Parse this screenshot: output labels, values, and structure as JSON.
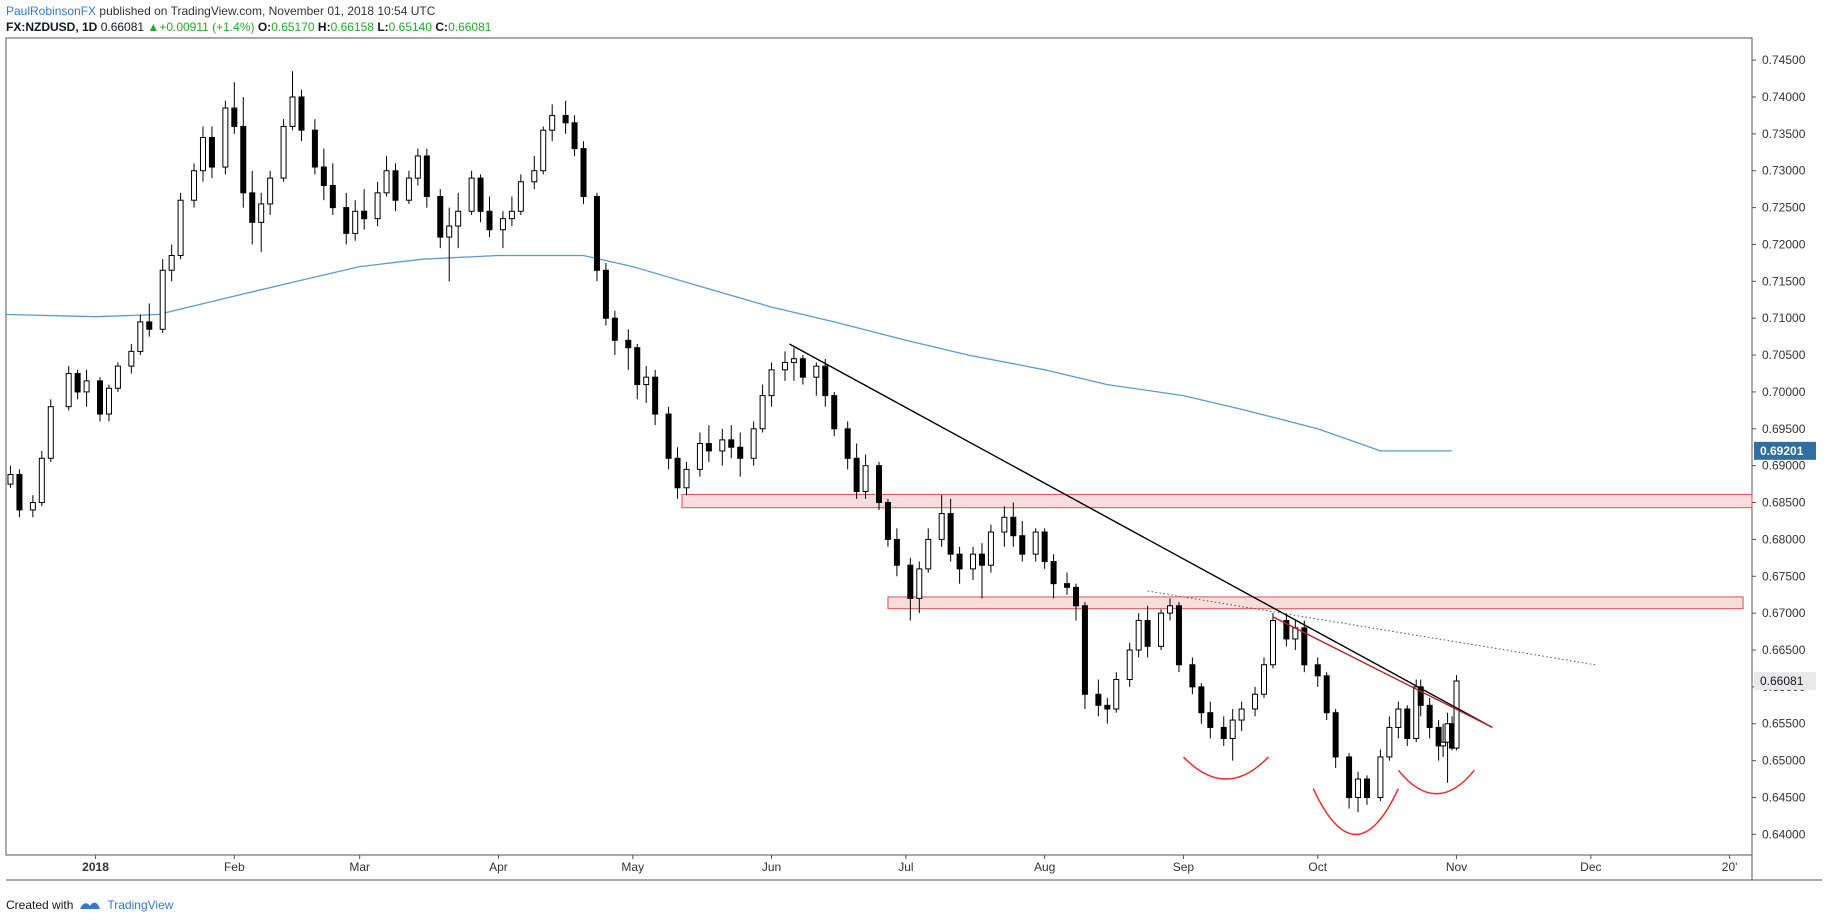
{
  "header": {
    "author": "PaulRobinsonFX",
    "published": "published on TradingView.com, November 01, 2018 10:54 UTC"
  },
  "symbol": {
    "name": "FX:NZDUSD, 1D",
    "last": "0.66081",
    "change_arrow": "▲",
    "change": "+0.00911 (+1.4%)",
    "o_label": "O:",
    "o": "0.65170",
    "h_label": "H:",
    "h": "0.66158",
    "l_label": "L:",
    "l": "0.65140",
    "c_label": "C:",
    "c": "0.66081"
  },
  "footer": {
    "created_with": "Created with",
    "brand": "TradingView"
  },
  "colors": {
    "up_body": "#ffffff",
    "down_body": "#000000",
    "wick": "#000000",
    "ma": "#5b9bd5",
    "zone_fill": "#f6d1d1",
    "zone_stroke": "#d9534f",
    "trend_red": "#b22222",
    "arc_red": "#e8302a",
    "last_label_bg": "#e9e9e9",
    "ma_label_bg": "#2f6fa3"
  },
  "chart_data": {
    "type": "candlestick",
    "title": "FX:NZDUSD, 1D",
    "ylim": [
      0.6372,
      0.748
    ],
    "y_ticks": [
      "0.74500",
      "0.74000",
      "0.73500",
      "0.73000",
      "0.72500",
      "0.72000",
      "0.71500",
      "0.71000",
      "0.70500",
      "0.70000",
      "0.69500",
      "0.69000",
      "0.68500",
      "0.68000",
      "0.67500",
      "0.67000",
      "0.66500",
      "0.66000",
      "0.65500",
      "0.65000",
      "0.64500",
      "0.64000"
    ],
    "x_labels": [
      "2018",
      "Feb",
      "Mar",
      "Apr",
      "May",
      "Jun",
      "Jul",
      "Aug",
      "Sep",
      "Oct",
      "Nov",
      "Dec",
      "20'"
    ],
    "x_label_dates": [
      "2018-01-01",
      "2018-02-01",
      "2018-03-01",
      "2018-04-01",
      "2018-05-01",
      "2018-06-01",
      "2018-07-01",
      "2018-08-01",
      "2018-09-01",
      "2018-10-01",
      "2018-11-01",
      "2018-12-01",
      "2019-01-01"
    ],
    "xlim": [
      "2017-12-12",
      "2019-01-06"
    ],
    "last_price_label": "0.66081",
    "ma_label": "0.69201",
    "ma_line": [
      [
        "2017-12-12",
        0.7105
      ],
      [
        "2018-01-01",
        0.7102
      ],
      [
        "2018-01-15",
        0.7105
      ],
      [
        "2018-02-01",
        0.713
      ],
      [
        "2018-02-15",
        0.715
      ],
      [
        "2018-03-01",
        0.717
      ],
      [
        "2018-03-15",
        0.718
      ],
      [
        "2018-04-01",
        0.7185
      ],
      [
        "2018-04-20",
        0.7185
      ],
      [
        "2018-05-01",
        0.717
      ],
      [
        "2018-05-15",
        0.7145
      ],
      [
        "2018-06-01",
        0.7115
      ],
      [
        "2018-06-15",
        0.7095
      ],
      [
        "2018-07-01",
        0.707
      ],
      [
        "2018-07-15",
        0.705
      ],
      [
        "2018-08-01",
        0.703
      ],
      [
        "2018-08-15",
        0.701
      ],
      [
        "2018-09-01",
        0.6995
      ],
      [
        "2018-09-15",
        0.6975
      ],
      [
        "2018-10-01",
        0.695
      ],
      [
        "2018-10-15",
        0.692
      ],
      [
        "2018-10-31",
        0.692
      ]
    ],
    "zones": [
      {
        "start": "2018-05-12",
        "end": "2019-01-06",
        "low": 0.6843,
        "high": 0.6861
      },
      {
        "start": "2018-06-27",
        "end": "2019-01-04",
        "low": 0.6706,
        "high": 0.6722
      }
    ],
    "trendlines": [
      {
        "from": [
          "2018-06-05",
          0.7065
        ],
        "to": [
          "2018-11-09",
          0.6545
        ],
        "color": "#000000",
        "style": "solid"
      },
      {
        "from": [
          "2018-09-21",
          0.6695
        ],
        "to": [
          "2018-11-09",
          0.6545
        ],
        "color": "#b22222",
        "style": "solid"
      },
      {
        "from": [
          "2018-08-24",
          0.673
        ],
        "to": [
          "2018-12-02",
          0.663
        ],
        "color": "#555555",
        "style": "dotted"
      }
    ],
    "arcs": [
      {
        "start": "2018-09-01",
        "end": "2018-09-20",
        "top": 0.6505,
        "bottom": 0.6475
      },
      {
        "start": "2018-09-30",
        "end": "2018-10-19",
        "top": 0.6462,
        "bottom": 0.64
      },
      {
        "start": "2018-10-19",
        "end": "2018-11-05",
        "top": 0.6487,
        "bottom": 0.6455
      }
    ],
    "candles": [
      [
        "2017-12-13",
        0.6875,
        0.69,
        0.687,
        0.6888
      ],
      [
        "2017-12-15",
        0.6888,
        0.6895,
        0.683,
        0.684
      ],
      [
        "2017-12-18",
        0.684,
        0.686,
        0.683,
        0.685
      ],
      [
        "2017-12-20",
        0.685,
        0.692,
        0.6845,
        0.691
      ],
      [
        "2017-12-22",
        0.691,
        0.699,
        0.6905,
        0.698
      ],
      [
        "2017-12-26",
        0.698,
        0.7035,
        0.6975,
        0.7025
      ],
      [
        "2017-12-28",
        0.7025,
        0.703,
        0.699,
        0.7
      ],
      [
        "2017-12-30",
        0.7,
        0.703,
        0.698,
        0.7015
      ],
      [
        "2018-01-02",
        0.7015,
        0.702,
        0.696,
        0.697
      ],
      [
        "2018-01-04",
        0.697,
        0.701,
        0.696,
        0.7005
      ],
      [
        "2018-01-06",
        0.7005,
        0.704,
        0.7,
        0.7035
      ],
      [
        "2018-01-09",
        0.7035,
        0.7065,
        0.7025,
        0.7055
      ],
      [
        "2018-01-11",
        0.7055,
        0.7105,
        0.705,
        0.7095
      ],
      [
        "2018-01-13",
        0.7095,
        0.712,
        0.7075,
        0.7085
      ],
      [
        "2018-01-16",
        0.7085,
        0.718,
        0.708,
        0.7165
      ],
      [
        "2018-01-18",
        0.7165,
        0.72,
        0.715,
        0.7185
      ],
      [
        "2018-01-20",
        0.7185,
        0.727,
        0.718,
        0.726
      ],
      [
        "2018-01-23",
        0.726,
        0.731,
        0.725,
        0.73
      ],
      [
        "2018-01-25",
        0.73,
        0.736,
        0.7285,
        0.7345
      ],
      [
        "2018-01-27",
        0.7345,
        0.736,
        0.729,
        0.7305
      ],
      [
        "2018-01-30",
        0.7305,
        0.7395,
        0.7295,
        0.7385
      ],
      [
        "2018-02-01",
        0.7385,
        0.742,
        0.735,
        0.736
      ],
      [
        "2018-02-03",
        0.736,
        0.74,
        0.725,
        0.727
      ],
      [
        "2018-02-05",
        0.727,
        0.73,
        0.72,
        0.723
      ],
      [
        "2018-02-07",
        0.723,
        0.727,
        0.719,
        0.7255
      ],
      [
        "2018-02-09",
        0.7255,
        0.73,
        0.724,
        0.729
      ],
      [
        "2018-02-12",
        0.729,
        0.737,
        0.7285,
        0.736
      ],
      [
        "2018-02-14",
        0.736,
        0.7435,
        0.7355,
        0.74
      ],
      [
        "2018-02-16",
        0.74,
        0.741,
        0.734,
        0.7355
      ],
      [
        "2018-02-19",
        0.7355,
        0.737,
        0.7295,
        0.7305
      ],
      [
        "2018-02-21",
        0.7305,
        0.733,
        0.726,
        0.728
      ],
      [
        "2018-02-23",
        0.728,
        0.731,
        0.724,
        0.725
      ],
      [
        "2018-02-26",
        0.725,
        0.727,
        0.72,
        0.7215
      ],
      [
        "2018-02-28",
        0.7215,
        0.726,
        0.7205,
        0.7245
      ],
      [
        "2018-03-02",
        0.7245,
        0.7275,
        0.722,
        0.7235
      ],
      [
        "2018-03-05",
        0.7235,
        0.7285,
        0.7225,
        0.727
      ],
      [
        "2018-03-07",
        0.727,
        0.732,
        0.7265,
        0.73
      ],
      [
        "2018-03-09",
        0.73,
        0.731,
        0.7245,
        0.726
      ],
      [
        "2018-03-12",
        0.726,
        0.73,
        0.7255,
        0.729
      ],
      [
        "2018-03-14",
        0.729,
        0.733,
        0.728,
        0.732
      ],
      [
        "2018-03-16",
        0.732,
        0.733,
        0.725,
        0.7265
      ],
      [
        "2018-03-19",
        0.7265,
        0.7275,
        0.7195,
        0.721
      ],
      [
        "2018-03-21",
        0.721,
        0.725,
        0.715,
        0.7225
      ],
      [
        "2018-03-23",
        0.7225,
        0.727,
        0.7195,
        0.7245
      ],
      [
        "2018-03-26",
        0.7245,
        0.73,
        0.724,
        0.729
      ],
      [
        "2018-03-28",
        0.729,
        0.7295,
        0.723,
        0.7245
      ],
      [
        "2018-03-30",
        0.7245,
        0.7265,
        0.721,
        0.722
      ],
      [
        "2018-04-02",
        0.722,
        0.7245,
        0.7195,
        0.7235
      ],
      [
        "2018-04-04",
        0.7235,
        0.7265,
        0.7225,
        0.7245
      ],
      [
        "2018-04-06",
        0.7245,
        0.7295,
        0.724,
        0.7285
      ],
      [
        "2018-04-09",
        0.7285,
        0.732,
        0.7275,
        0.73
      ],
      [
        "2018-04-11",
        0.73,
        0.736,
        0.7295,
        0.7355
      ],
      [
        "2018-04-13",
        0.7355,
        0.739,
        0.734,
        0.7375
      ],
      [
        "2018-04-16",
        0.7375,
        0.7395,
        0.735,
        0.7365
      ],
      [
        "2018-04-18",
        0.7365,
        0.7375,
        0.732,
        0.733
      ],
      [
        "2018-04-20",
        0.733,
        0.734,
        0.7255,
        0.7265
      ],
      [
        "2018-04-23",
        0.7265,
        0.727,
        0.715,
        0.7165
      ],
      [
        "2018-04-25",
        0.7165,
        0.7175,
        0.709,
        0.71
      ],
      [
        "2018-04-27",
        0.71,
        0.711,
        0.705,
        0.707
      ],
      [
        "2018-04-30",
        0.707,
        0.7085,
        0.703,
        0.706
      ],
      [
        "2018-05-02",
        0.706,
        0.7065,
        0.699,
        0.701
      ],
      [
        "2018-05-04",
        0.701,
        0.7035,
        0.6985,
        0.702
      ],
      [
        "2018-05-06",
        0.702,
        0.703,
        0.6955,
        0.697
      ],
      [
        "2018-05-09",
        0.697,
        0.698,
        0.6895,
        0.691
      ],
      [
        "2018-05-11",
        0.691,
        0.6925,
        0.6855,
        0.687
      ],
      [
        "2018-05-13",
        0.687,
        0.6905,
        0.686,
        0.6895
      ],
      [
        "2018-05-16",
        0.6895,
        0.6945,
        0.6885,
        0.693
      ],
      [
        "2018-05-18",
        0.693,
        0.6955,
        0.6905,
        0.692
      ],
      [
        "2018-05-21",
        0.692,
        0.695,
        0.69,
        0.6935
      ],
      [
        "2018-05-23",
        0.6935,
        0.6955,
        0.691,
        0.6925
      ],
      [
        "2018-05-25",
        0.6925,
        0.6945,
        0.6885,
        0.691
      ],
      [
        "2018-05-28",
        0.691,
        0.696,
        0.69,
        0.695
      ],
      [
        "2018-05-30",
        0.695,
        0.701,
        0.6945,
        0.6995
      ],
      [
        "2018-06-01",
        0.6995,
        0.704,
        0.698,
        0.703
      ],
      [
        "2018-06-04",
        0.703,
        0.7055,
        0.7015,
        0.704
      ],
      [
        "2018-06-06",
        0.704,
        0.706,
        0.7015,
        0.7045
      ],
      [
        "2018-06-08",
        0.7045,
        0.705,
        0.701,
        0.702
      ],
      [
        "2018-06-11",
        0.702,
        0.704,
        0.6995,
        0.7035
      ],
      [
        "2018-06-13",
        0.7035,
        0.7045,
        0.698,
        0.6995
      ],
      [
        "2018-06-15",
        0.6995,
        0.7,
        0.694,
        0.695
      ],
      [
        "2018-06-18",
        0.695,
        0.696,
        0.6895,
        0.691
      ],
      [
        "2018-06-20",
        0.691,
        0.693,
        0.6855,
        0.6865
      ],
      [
        "2018-06-22",
        0.6865,
        0.6915,
        0.6855,
        0.69
      ],
      [
        "2018-06-25",
        0.69,
        0.6905,
        0.684,
        0.685
      ],
      [
        "2018-06-27",
        0.685,
        0.6855,
        0.679,
        0.68
      ],
      [
        "2018-06-29",
        0.68,
        0.6815,
        0.675,
        0.6765
      ],
      [
        "2018-07-02",
        0.6765,
        0.6775,
        0.669,
        0.672
      ],
      [
        "2018-07-04",
        0.672,
        0.677,
        0.67,
        0.676
      ],
      [
        "2018-07-06",
        0.676,
        0.6815,
        0.6755,
        0.68
      ],
      [
        "2018-07-09",
        0.68,
        0.686,
        0.679,
        0.6835
      ],
      [
        "2018-07-11",
        0.6835,
        0.6855,
        0.677,
        0.678
      ],
      [
        "2018-07-13",
        0.678,
        0.679,
        0.674,
        0.676
      ],
      [
        "2018-07-16",
        0.676,
        0.679,
        0.6745,
        0.678
      ],
      [
        "2018-07-18",
        0.678,
        0.6795,
        0.672,
        0.6765
      ],
      [
        "2018-07-20",
        0.6765,
        0.682,
        0.6755,
        0.681
      ],
      [
        "2018-07-23",
        0.681,
        0.6845,
        0.679,
        0.683
      ],
      [
        "2018-07-25",
        0.683,
        0.685,
        0.679,
        0.6805
      ],
      [
        "2018-07-27",
        0.6805,
        0.6825,
        0.677,
        0.678
      ],
      [
        "2018-07-30",
        0.678,
        0.6815,
        0.677,
        0.681
      ],
      [
        "2018-08-01",
        0.681,
        0.6815,
        0.676,
        0.677
      ],
      [
        "2018-08-03",
        0.677,
        0.678,
        0.672,
        0.674
      ],
      [
        "2018-08-06",
        0.674,
        0.6755,
        0.6725,
        0.6735
      ],
      [
        "2018-08-08",
        0.6735,
        0.674,
        0.669,
        0.671
      ],
      [
        "2018-08-10",
        0.671,
        0.6715,
        0.657,
        0.659
      ],
      [
        "2018-08-13",
        0.659,
        0.661,
        0.656,
        0.6575
      ],
      [
        "2018-08-15",
        0.6575,
        0.6585,
        0.655,
        0.657
      ],
      [
        "2018-08-17",
        0.657,
        0.662,
        0.6565,
        0.661
      ],
      [
        "2018-08-20",
        0.661,
        0.666,
        0.66,
        0.665
      ],
      [
        "2018-08-22",
        0.665,
        0.67,
        0.664,
        0.669
      ],
      [
        "2018-08-24",
        0.669,
        0.671,
        0.664,
        0.6655
      ],
      [
        "2018-08-27",
        0.6655,
        0.6705,
        0.665,
        0.67
      ],
      [
        "2018-08-29",
        0.67,
        0.672,
        0.669,
        0.671
      ],
      [
        "2018-08-31",
        0.671,
        0.6715,
        0.662,
        0.663
      ],
      [
        "2018-09-03",
        0.663,
        0.664,
        0.659,
        0.66
      ],
      [
        "2018-09-05",
        0.66,
        0.6605,
        0.655,
        0.6565
      ],
      [
        "2018-09-07",
        0.6565,
        0.658,
        0.653,
        0.6545
      ],
      [
        "2018-09-10",
        0.6545,
        0.656,
        0.652,
        0.653
      ],
      [
        "2018-09-12",
        0.653,
        0.657,
        0.65,
        0.6555
      ],
      [
        "2018-09-14",
        0.6555,
        0.658,
        0.654,
        0.657
      ],
      [
        "2018-09-17",
        0.657,
        0.66,
        0.656,
        0.659
      ],
      [
        "2018-09-19",
        0.659,
        0.664,
        0.6585,
        0.663
      ],
      [
        "2018-09-21",
        0.663,
        0.67,
        0.6625,
        0.669
      ],
      [
        "2018-09-24",
        0.669,
        0.67,
        0.6655,
        0.6665
      ],
      [
        "2018-09-26",
        0.6665,
        0.669,
        0.665,
        0.668
      ],
      [
        "2018-09-28",
        0.668,
        0.669,
        0.662,
        0.663
      ],
      [
        "2018-10-01",
        0.663,
        0.664,
        0.66,
        0.6615
      ],
      [
        "2018-10-03",
        0.6615,
        0.662,
        0.6555,
        0.6565
      ],
      [
        "2018-10-05",
        0.6565,
        0.657,
        0.649,
        0.6505
      ],
      [
        "2018-10-08",
        0.6505,
        0.651,
        0.6435,
        0.645
      ],
      [
        "2018-10-10",
        0.645,
        0.6485,
        0.643,
        0.6475
      ],
      [
        "2018-10-12",
        0.6475,
        0.648,
        0.644,
        0.645
      ],
      [
        "2018-10-15",
        0.645,
        0.6515,
        0.6445,
        0.6505
      ],
      [
        "2018-10-17",
        0.6505,
        0.656,
        0.65,
        0.6545
      ],
      [
        "2018-10-19",
        0.6545,
        0.658,
        0.653,
        0.657
      ],
      [
        "2018-10-21",
        0.657,
        0.6575,
        0.652,
        0.653
      ],
      [
        "2018-10-23",
        0.653,
        0.661,
        0.6525,
        0.66
      ],
      [
        "2018-10-24",
        0.66,
        0.661,
        0.656,
        0.6575
      ],
      [
        "2018-10-26",
        0.6575,
        0.6585,
        0.653,
        0.6545
      ],
      [
        "2018-10-28",
        0.6545,
        0.6555,
        0.65,
        0.652
      ],
      [
        "2018-10-29",
        0.652,
        0.655,
        0.6505,
        0.6525
      ],
      [
        "2018-10-30",
        0.6525,
        0.6565,
        0.647,
        0.655
      ],
      [
        "2018-10-31",
        0.655,
        0.656,
        0.6514,
        0.6517
      ],
      [
        "2018-11-01",
        0.6517,
        0.6616,
        0.6514,
        0.6608
      ]
    ]
  }
}
